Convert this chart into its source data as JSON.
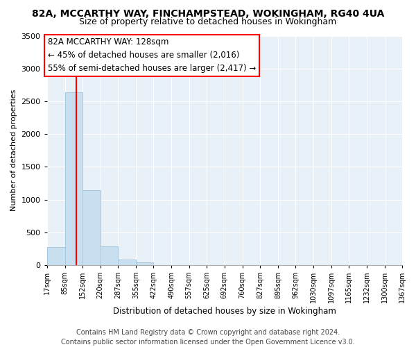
{
  "title1": "82A, MCCARTHY WAY, FINCHAMPSTEAD, WOKINGHAM, RG40 4UA",
  "title2": "Size of property relative to detached houses in Wokingham",
  "xlabel": "Distribution of detached houses by size in Wokingham",
  "ylabel": "Number of detached properties",
  "bar_edges": [
    17,
    85,
    152,
    220,
    287,
    355,
    422,
    490,
    557,
    625,
    692,
    760,
    827,
    895,
    962,
    1030,
    1097,
    1165,
    1232,
    1300,
    1367
  ],
  "bar_heights": [
    275,
    2640,
    1140,
    280,
    80,
    45,
    0,
    0,
    0,
    0,
    0,
    0,
    0,
    0,
    0,
    0,
    0,
    0,
    0,
    0
  ],
  "bar_color": "#c8dff0",
  "bar_edgecolor": "#a8c8e0",
  "red_line_x": 128,
  "ylim": [
    0,
    3500
  ],
  "xlim_min": 17,
  "xlim_max": 1367,
  "yticks": [
    0,
    500,
    1000,
    1500,
    2000,
    2500,
    3000,
    3500
  ],
  "annotation_title": "82A MCCARTHY WAY: 128sqm",
  "annotation_line1": "← 45% of detached houses are smaller (2,016)",
  "annotation_line2": "55% of semi-detached houses are larger (2,417) →",
  "footer1": "Contains HM Land Registry data © Crown copyright and database right 2024.",
  "footer2": "Contains public sector information licensed under the Open Government Licence v3.0.",
  "background_color": "#ffffff",
  "plot_bg_color": "#e8f0f8",
  "grid_color": "#ffffff",
  "title1_fontsize": 10,
  "title2_fontsize": 9,
  "xlabel_fontsize": 8.5,
  "ylabel_fontsize": 8,
  "tick_fontsize": 7,
  "annotation_fontsize": 8.5,
  "footer_fontsize": 7
}
